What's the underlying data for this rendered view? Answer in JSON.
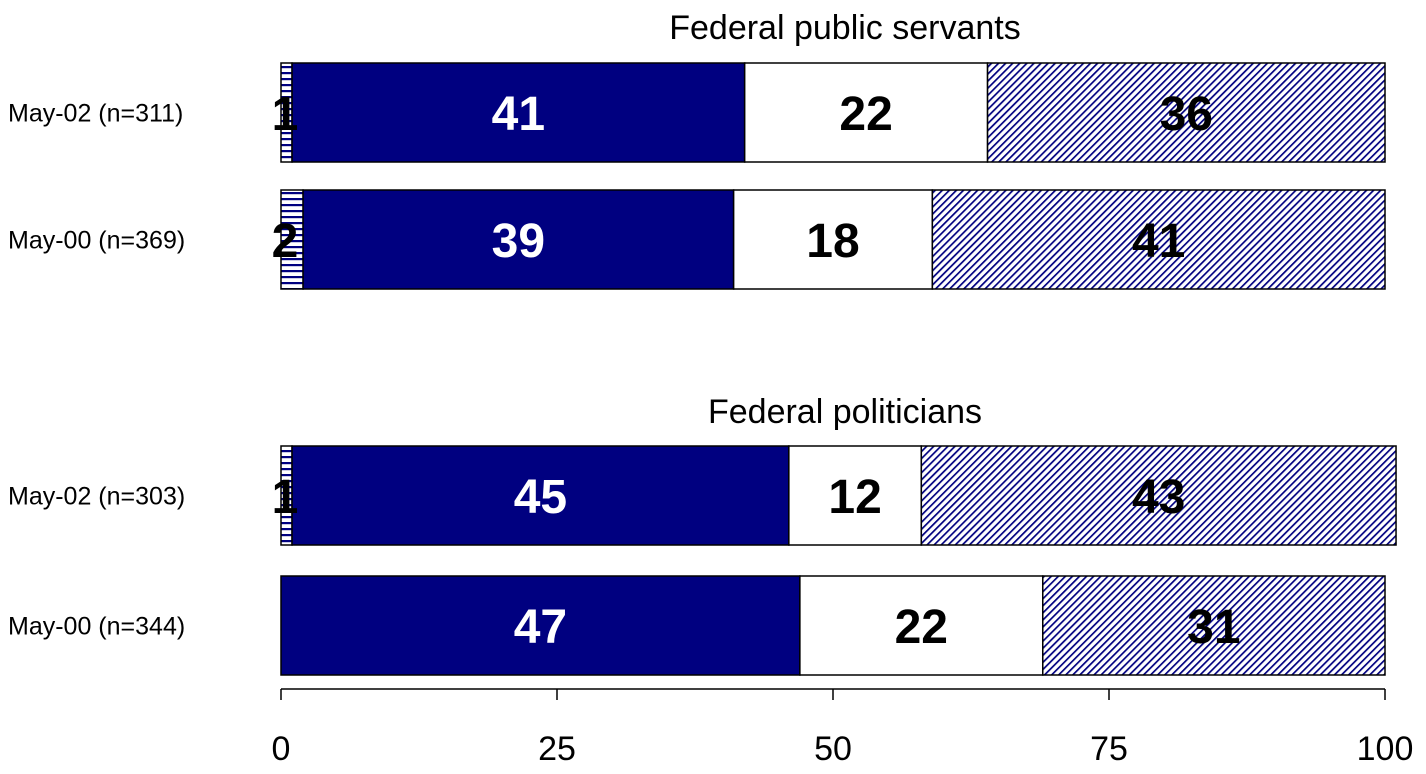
{
  "chart_data": {
    "type": "bar",
    "orientation": "horizontal",
    "stacked": true,
    "xlim": [
      0,
      100
    ],
    "xticks": [
      0,
      25,
      50,
      75,
      100
    ],
    "grid": false,
    "colors": [
      "#ffffff",
      "#000080",
      "#ffffff",
      "#ffffff"
    ],
    "panels": [
      {
        "title": "Federal public servants",
        "rows": [
          {
            "label": "May-02 (n=311)",
            "values": [
              1,
              41,
              22,
              36
            ]
          },
          {
            "label": "May-00 (n=369)",
            "values": [
              2,
              39,
              18,
              41
            ]
          }
        ]
      },
      {
        "title": "Federal politicians",
        "rows": [
          {
            "label": "May-02 (n=303)",
            "values": [
              1,
              45,
              12,
              43
            ]
          },
          {
            "label": "May-00 (n=344)",
            "values": [
              0,
              47,
              22,
              31
            ]
          }
        ]
      }
    ]
  }
}
